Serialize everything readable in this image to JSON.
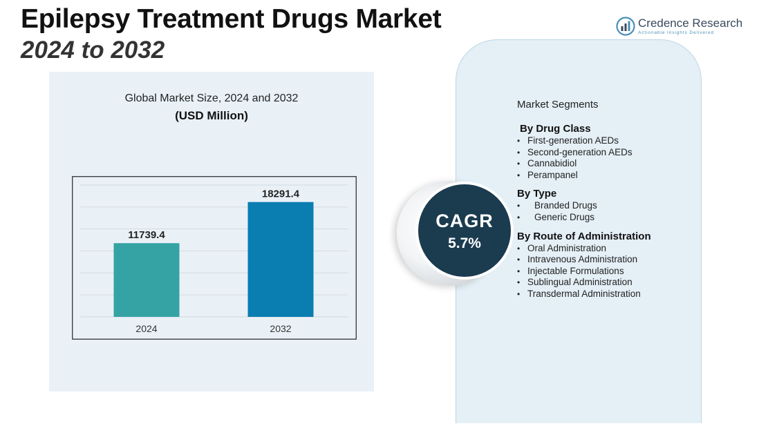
{
  "header": {
    "title": "Epilepsy Treatment Drugs Market",
    "subtitle": "2024 to 2032"
  },
  "logo": {
    "name": "Credence Research",
    "tagline": "Actionable Insights Delivered",
    "icon": "bar-chart-logo-icon",
    "color": "#4a8fb6"
  },
  "chart_data": {
    "type": "bar",
    "title": "Global Market Size, 2024 and 2032",
    "unit_label": "(USD Million)",
    "categories": [
      "2024",
      "2032"
    ],
    "values": [
      11739.4,
      18291.4
    ],
    "data_labels": [
      "11739.4",
      "18291.4"
    ],
    "colors": [
      "#35a3a3",
      "#0a7db1"
    ],
    "ylim": [
      0,
      21000
    ],
    "grid": true,
    "legend": "none",
    "xlabel": "",
    "ylabel": ""
  },
  "cagr": {
    "label": "CAGR",
    "value": "5.7%"
  },
  "segments": {
    "heading": "Market Segments",
    "groups": [
      {
        "title": "By Drug Class",
        "items": [
          "First-generation AEDs",
          "Second-generation AEDs",
          "Cannabidiol",
          "Perampanel"
        ]
      },
      {
        "title": "By Type",
        "items": [
          "Branded Drugs",
          "Generic Drugs"
        ]
      },
      {
        "title": "By Route of Administration",
        "items": [
          "Oral Administration",
          "Intravenous Administration",
          "Injectable Formulations",
          "Sublingual Administration",
          "Transdermal Administration"
        ]
      }
    ]
  }
}
